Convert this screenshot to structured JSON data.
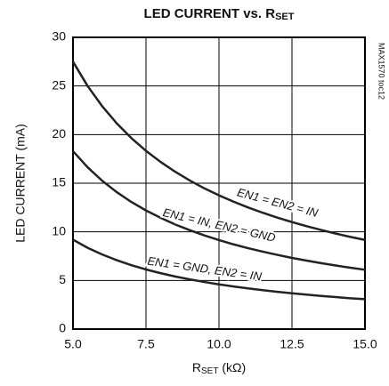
{
  "chart_data": {
    "type": "line",
    "title": [
      "LED CURRENT vs. R",
      "SET"
    ],
    "xlabel": [
      "R",
      "SET",
      " (kΩ)"
    ],
    "ylabel": "LED CURRENT (mA)",
    "note": "MAX1570 toc12",
    "x": [
      5,
      5.5,
      6,
      6.5,
      7,
      7.5,
      8,
      8.5,
      9,
      9.5,
      10,
      10.5,
      11,
      11.5,
      12,
      12.5,
      13,
      13.5,
      14,
      14.5,
      15
    ],
    "series": [
      {
        "name": "EN1 = EN2 = IN",
        "color": "#222222",
        "values": [
          27.5,
          25.0,
          22.92,
          21.15,
          19.64,
          18.33,
          17.19,
          16.18,
          15.28,
          14.47,
          13.75,
          13.1,
          12.5,
          11.96,
          11.46,
          11.0,
          10.58,
          10.19,
          9.82,
          9.48,
          9.17
        ]
      },
      {
        "name": "EN1 = IN, EN2 = GND",
        "color": "#222222",
        "values": [
          18.3,
          16.64,
          15.25,
          14.08,
          13.07,
          12.2,
          11.44,
          10.76,
          10.17,
          9.63,
          9.15,
          8.71,
          8.32,
          7.96,
          7.63,
          7.32,
          7.04,
          6.78,
          6.54,
          6.31,
          6.1
        ]
      },
      {
        "name": "EN1 = GND, EN2 = IN",
        "color": "#222222",
        "values": [
          9.2,
          8.36,
          7.67,
          7.08,
          6.57,
          6.13,
          5.75,
          5.41,
          5.11,
          4.84,
          4.6,
          4.38,
          4.18,
          4.0,
          3.83,
          3.68,
          3.54,
          3.41,
          3.29,
          3.17,
          3.07
        ]
      }
    ],
    "xlim": [
      5,
      15
    ],
    "xticks": [
      {
        "value": 5,
        "label": "5.0"
      },
      {
        "value": 7.5,
        "label": "7.5"
      },
      {
        "value": 10,
        "label": "10.0"
      },
      {
        "value": 12.5,
        "label": "12.5"
      },
      {
        "value": 15,
        "label": "15.0"
      }
    ],
    "ylim": [
      0,
      30
    ],
    "yticks": [
      0,
      5,
      10,
      15,
      20,
      25,
      30
    ],
    "grid": true
  }
}
